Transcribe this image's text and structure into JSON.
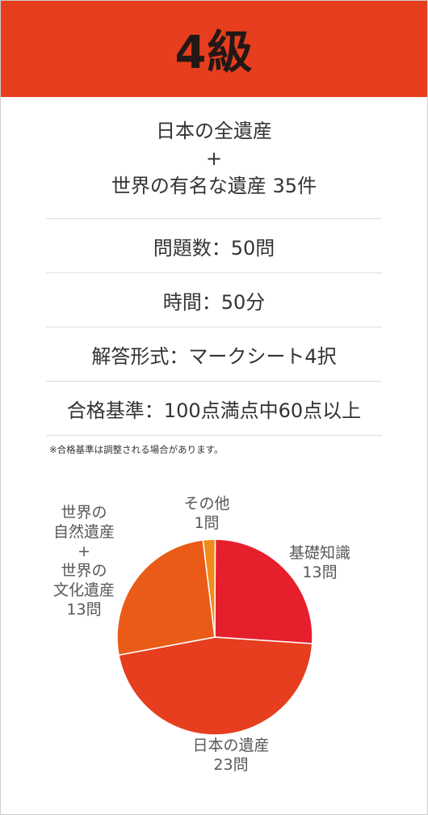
{
  "header": {
    "title": "4級",
    "color": "#e63e1e"
  },
  "info": {
    "scope_line1": "日本の全遺産",
    "scope_plus": "+",
    "scope_line2": "世界の有名な遺産 35件",
    "questions": "問題数：50問",
    "time": "時間：50分",
    "format": "解答形式：マークシート4択",
    "pass": "合格基準：100点満点中60点以上",
    "note": "※合格基準は調整される場合があります。"
  },
  "chart_data": {
    "type": "pie",
    "title": "",
    "slices": [
      {
        "label": [
          "基礎知識",
          "13問"
        ],
        "value": 13,
        "color": "#e61f2d"
      },
      {
        "label": [
          "日本の遺産",
          "23問"
        ],
        "value": 23,
        "color": "#e63e1e"
      },
      {
        "label": [
          "世界の",
          "自然遺産",
          "+",
          "世界の",
          "文化遺産",
          "13問"
        ],
        "value": 13,
        "color": "#ea5b18"
      },
      {
        "label": [
          "その他",
          "1問"
        ],
        "value": 1,
        "color": "#ef8b1c"
      }
    ],
    "start": "12 o'clock",
    "direction": "clockwise"
  }
}
